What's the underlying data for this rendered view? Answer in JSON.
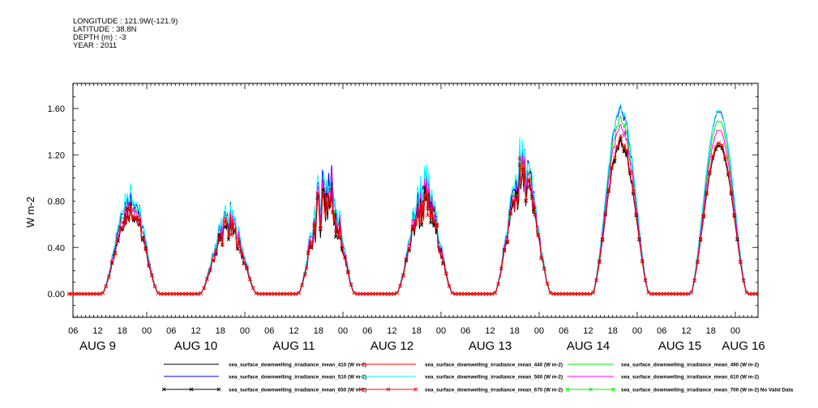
{
  "header": {
    "longitude": "LONGITUDE : 121.9W(-121.9)",
    "latitude": "LATITUDE : 38.8N",
    "depth": "DEPTH (m) : -3",
    "year": "YEAR : 2011"
  },
  "chart_data": {
    "type": "line",
    "title": "",
    "xlabel": "",
    "ylabel": "W m-2",
    "ylim": [
      -0.2,
      1.82
    ],
    "yticks": [
      "0.00",
      "0.40",
      "0.80",
      "1.20",
      "1.60"
    ],
    "ytick_values": [
      0,
      0.4,
      0.8,
      1.2,
      1.6
    ],
    "x_range_hours_from_aug9_00": [
      5,
      173
    ],
    "xtick_labels": [
      "06",
      "12",
      "18",
      "00",
      "06",
      "12",
      "18",
      "00",
      "06",
      "12",
      "18",
      "00",
      "06",
      "12",
      "18",
      "00",
      "06",
      "12",
      "18",
      "00",
      "06",
      "12",
      "18",
      "00",
      "06",
      "12",
      "18",
      "00"
    ],
    "day_labels": [
      "AUG  9",
      "AUG 10",
      "AUG 11",
      "AUG 12",
      "AUG 13",
      "AUG 14",
      "AUG 15",
      "AUG 16"
    ],
    "daylight_hours_utc": [
      13,
      27
    ],
    "day_variability": [
      0.12,
      0.18,
      0.3,
      0.2,
      0.2,
      0.03,
      0.01
    ],
    "series": [
      {
        "name": "sea_surface_downwelling_irradiance_mean_410 (W m-2)",
        "color": "#000000",
        "marker": "none",
        "daily_peaks": [
          0.7,
          0.55,
          0.8,
          0.75,
          0.95,
          1.28,
          1.27
        ]
      },
      {
        "name": "sea_surface_downwelling_irradiance_mean_440 (W m-2)",
        "color": "#ff0000",
        "marker": "none",
        "daily_peaks": [
          0.72,
          0.57,
          0.83,
          0.77,
          0.97,
          1.31,
          1.3
        ]
      },
      {
        "name": "sea_surface_downwelling_irradiance_mean_490 (W m-2)",
        "color": "#00ee00",
        "marker": "none",
        "daily_peaks": [
          0.8,
          0.62,
          0.92,
          0.85,
          1.05,
          1.5,
          1.49
        ]
      },
      {
        "name": "sea_surface_downwelling_irradiance_mean_510 (W m-2)",
        "color": "#0000ff",
        "marker": "none",
        "daily_peaks": [
          0.85,
          0.66,
          0.98,
          0.9,
          1.1,
          1.58,
          1.57
        ]
      },
      {
        "name": "sea_surface_downwelling_irradiance_mean_560 (W m-2)",
        "color": "#00ffff",
        "marker": "none",
        "daily_peaks": [
          0.88,
          0.68,
          1.0,
          0.92,
          1.12,
          1.6,
          1.58
        ]
      },
      {
        "name": "sea_surface_downwelling_irradiance_mean_610 (W m-2)",
        "color": "#ff00ff",
        "marker": "none",
        "daily_peaks": [
          0.78,
          0.61,
          0.9,
          0.83,
          1.02,
          1.43,
          1.41
        ]
      },
      {
        "name": "sea_surface_downwelling_irradiance_mean_650 (W m-2)",
        "color": "#000000",
        "marker": "x",
        "daily_peaks": [
          0.71,
          0.56,
          0.82,
          0.76,
          0.96,
          1.3,
          1.28
        ]
      },
      {
        "name": "sea_surface_downwelling_irradiance_mean_670 (W m-2)",
        "color": "#ff0000",
        "marker": "x",
        "daily_peaks": [
          0.72,
          0.57,
          0.83,
          0.77,
          0.97,
          1.32,
          1.3
        ]
      },
      {
        "name": "sea_surface_downwelling_irradiance_mean_700 (W m-2) No Valid Data",
        "color": "#00ee00",
        "marker": "x",
        "daily_peaks": null
      }
    ],
    "grid": false,
    "legend_placement": "bottom"
  }
}
